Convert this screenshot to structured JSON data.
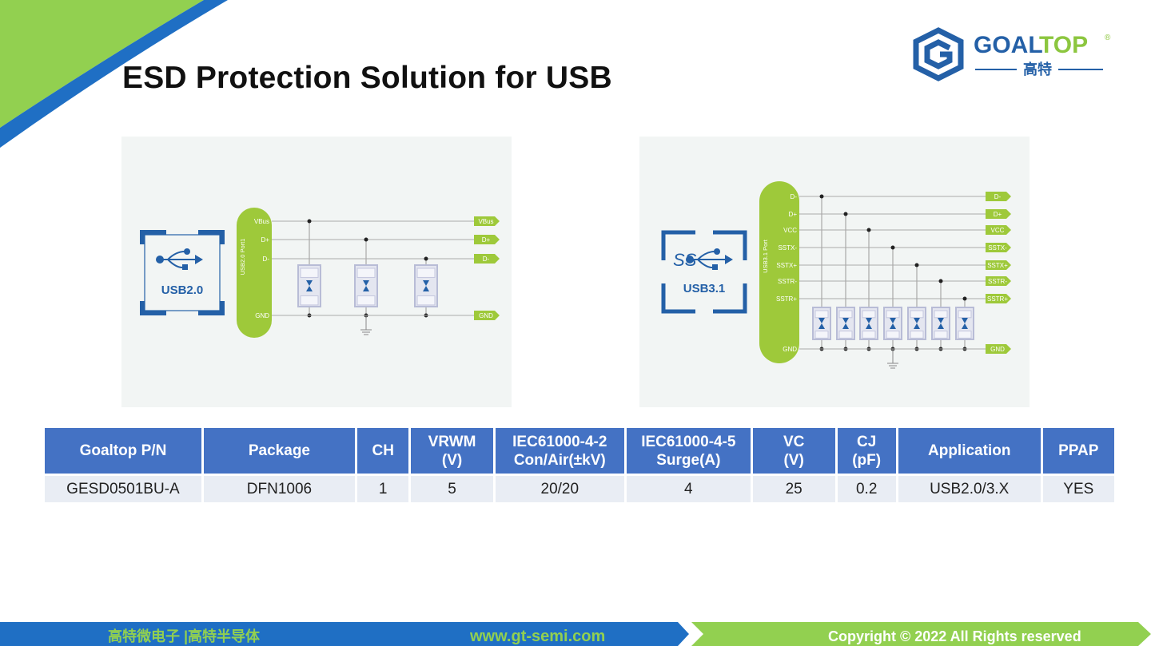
{
  "title": "ESD Protection Solution for USB",
  "logo": {
    "brand": "GOALTOP",
    "chinese": "高特",
    "registered": "®"
  },
  "colors": {
    "green": "#92d050",
    "blue": "#1f6fc4",
    "table_header": "#4472c4",
    "table_row": "#e9edf4",
    "diagram_green": "#9ec93a",
    "icon_blue": "#2460a7"
  },
  "diagram_usb2": {
    "icon_label": "USB2.0",
    "port_label": "USB2.0 Port1",
    "lines": [
      "VBus",
      "D+",
      "D-"
    ],
    "ground": "GND",
    "tags": [
      "VBus",
      "D+",
      "D-"
    ],
    "ground_tag": "GND",
    "icon": "usb-icon"
  },
  "diagram_usb3": {
    "icon_label": "USB3.1",
    "icon_ss": "SS",
    "port_label": "USB3.1 Port",
    "lines": [
      "D-",
      "D+",
      "VCC",
      "SSTX-",
      "SSTX+",
      "SSTR-",
      "SSTR+"
    ],
    "ground": "GND",
    "tags": [
      "D-",
      "D+",
      "VCC",
      "SSTX-",
      "SSTX+",
      "SSTR-",
      "SSTR+"
    ],
    "ground_tag": "GND",
    "icon": "usb-superspeed-icon"
  },
  "table": {
    "headers": [
      [
        "Goaltop P/N"
      ],
      [
        "Package"
      ],
      [
        "CH"
      ],
      [
        "VRWM",
        "(V)"
      ],
      [
        "IEC61000-4-2",
        "Con/Air(±kV)"
      ],
      [
        "IEC61000-4-5",
        "Surge(A)"
      ],
      [
        "VC",
        "(V)"
      ],
      [
        "CJ",
        "(pF)"
      ],
      [
        "Application"
      ],
      [
        "PPAP"
      ]
    ],
    "rows": [
      [
        "GESD0501BU-A",
        "DFN1006",
        "1",
        "5",
        "20/20",
        "4",
        "25",
        "0.2",
        "USB2.0/3.X",
        "YES"
      ]
    ]
  },
  "footer": {
    "company": "高特微电子 |高特半导体",
    "website": "www.gt-semi.com",
    "copyright": "Copyright © 2022 All Rights reserved"
  }
}
